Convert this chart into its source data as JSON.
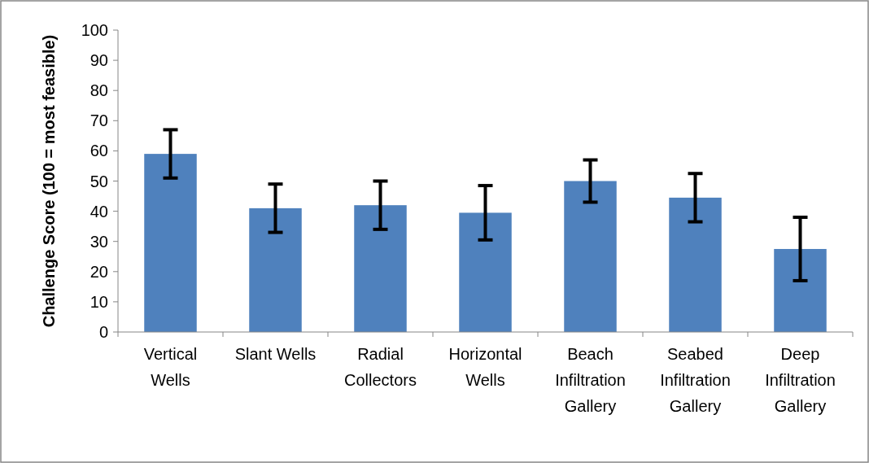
{
  "chart_data": {
    "type": "bar",
    "ylabel": "Challenge Score (100 = most feasible)",
    "categories": [
      "Vertical Wells",
      "Slant Wells",
      "Radial Collectors",
      "Horizontal Wells",
      "Beach Infiltration Gallery",
      "Seabed Infiltration Gallery",
      "Deep Infiltration Gallery"
    ],
    "values": [
      59,
      41,
      42,
      39.5,
      50,
      44.5,
      27.5
    ],
    "errors": [
      8,
      8,
      8,
      9,
      7,
      8,
      10.5
    ],
    "color": "#4f81bd",
    "ylim": [
      0,
      100
    ],
    "yticks": [
      0,
      10,
      20,
      30,
      40,
      50,
      60,
      70,
      80,
      90,
      100
    ],
    "grid": false
  }
}
